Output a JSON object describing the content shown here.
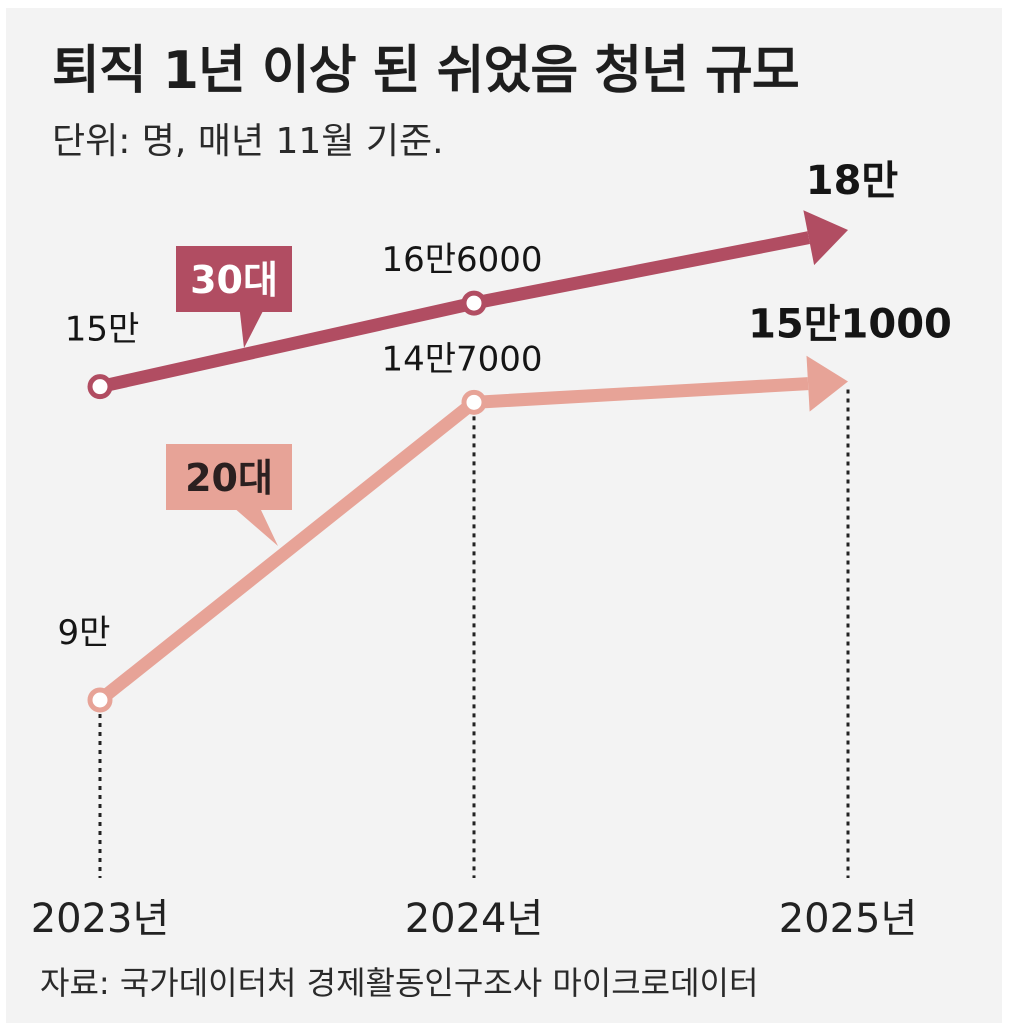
{
  "title": "퇴직 1년 이상 된 쉬었음 청년 규모",
  "subtitle": "단위: 명, 매년 11월 기준.",
  "source": "자료: 국가데이터처 경제활동인구조사 마이크로데이터",
  "colors": {
    "series_30s": "#b14d62",
    "series_20s": "#e7a397",
    "background": "#f3f3f3"
  },
  "chart_data": {
    "type": "line",
    "x": [
      "2023년",
      "2024년",
      "2025년"
    ],
    "series": [
      {
        "name": "30대",
        "values": [
          150000,
          166000,
          180000
        ],
        "labels": [
          "15만",
          "16만6000",
          "18만"
        ],
        "color": "#b14d62"
      },
      {
        "name": "20대",
        "values": [
          90000,
          147000,
          151000
        ],
        "labels": [
          "9만",
          "14만7000",
          "15만1000"
        ],
        "color": "#e7a397"
      }
    ],
    "title": "퇴직 1년 이상 된 쉬었음 청년 규모",
    "subtitle": "단위: 명, 매년 11월 기준.",
    "legend": "inline-callouts",
    "grid": false
  }
}
